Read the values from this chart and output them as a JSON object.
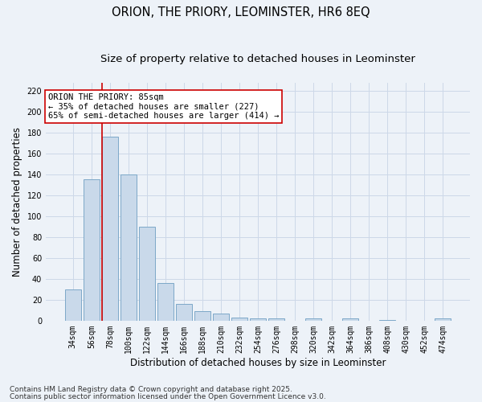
{
  "title_line1": "ORION, THE PRIORY, LEOMINSTER, HR6 8EQ",
  "title_line2": "Size of property relative to detached houses in Leominster",
  "xlabel": "Distribution of detached houses by size in Leominster",
  "ylabel": "Number of detached properties",
  "categories": [
    "34sqm",
    "56sqm",
    "78sqm",
    "100sqm",
    "122sqm",
    "144sqm",
    "166sqm",
    "188sqm",
    "210sqm",
    "232sqm",
    "254sqm",
    "276sqm",
    "298sqm",
    "320sqm",
    "342sqm",
    "364sqm",
    "386sqm",
    "408sqm",
    "430sqm",
    "452sqm",
    "474sqm"
  ],
  "values": [
    30,
    135,
    176,
    140,
    90,
    36,
    16,
    9,
    7,
    3,
    2,
    2,
    0,
    2,
    0,
    2,
    0,
    1,
    0,
    0,
    2
  ],
  "bar_color": "#c9d9ea",
  "bar_edge_color": "#7da8c8",
  "vline_color": "#cc0000",
  "vline_index": 2,
  "annotation_text": "ORION THE PRIORY: 85sqm\n← 35% of detached houses are smaller (227)\n65% of semi-detached houses are larger (414) →",
  "annotation_box_color": "#ffffff",
  "annotation_box_edge": "#cc0000",
  "ylim": [
    0,
    228
  ],
  "yticks": [
    0,
    20,
    40,
    60,
    80,
    100,
    120,
    140,
    160,
    180,
    200,
    220
  ],
  "grid_color": "#cdd8e8",
  "background_color": "#edf2f8",
  "footer_line1": "Contains HM Land Registry data © Crown copyright and database right 2025.",
  "footer_line2": "Contains public sector information licensed under the Open Government Licence v3.0.",
  "title_fontsize": 10.5,
  "subtitle_fontsize": 9.5,
  "tick_fontsize": 7,
  "axis_label_fontsize": 8.5,
  "annotation_fontsize": 7.5,
  "footer_fontsize": 6.5
}
